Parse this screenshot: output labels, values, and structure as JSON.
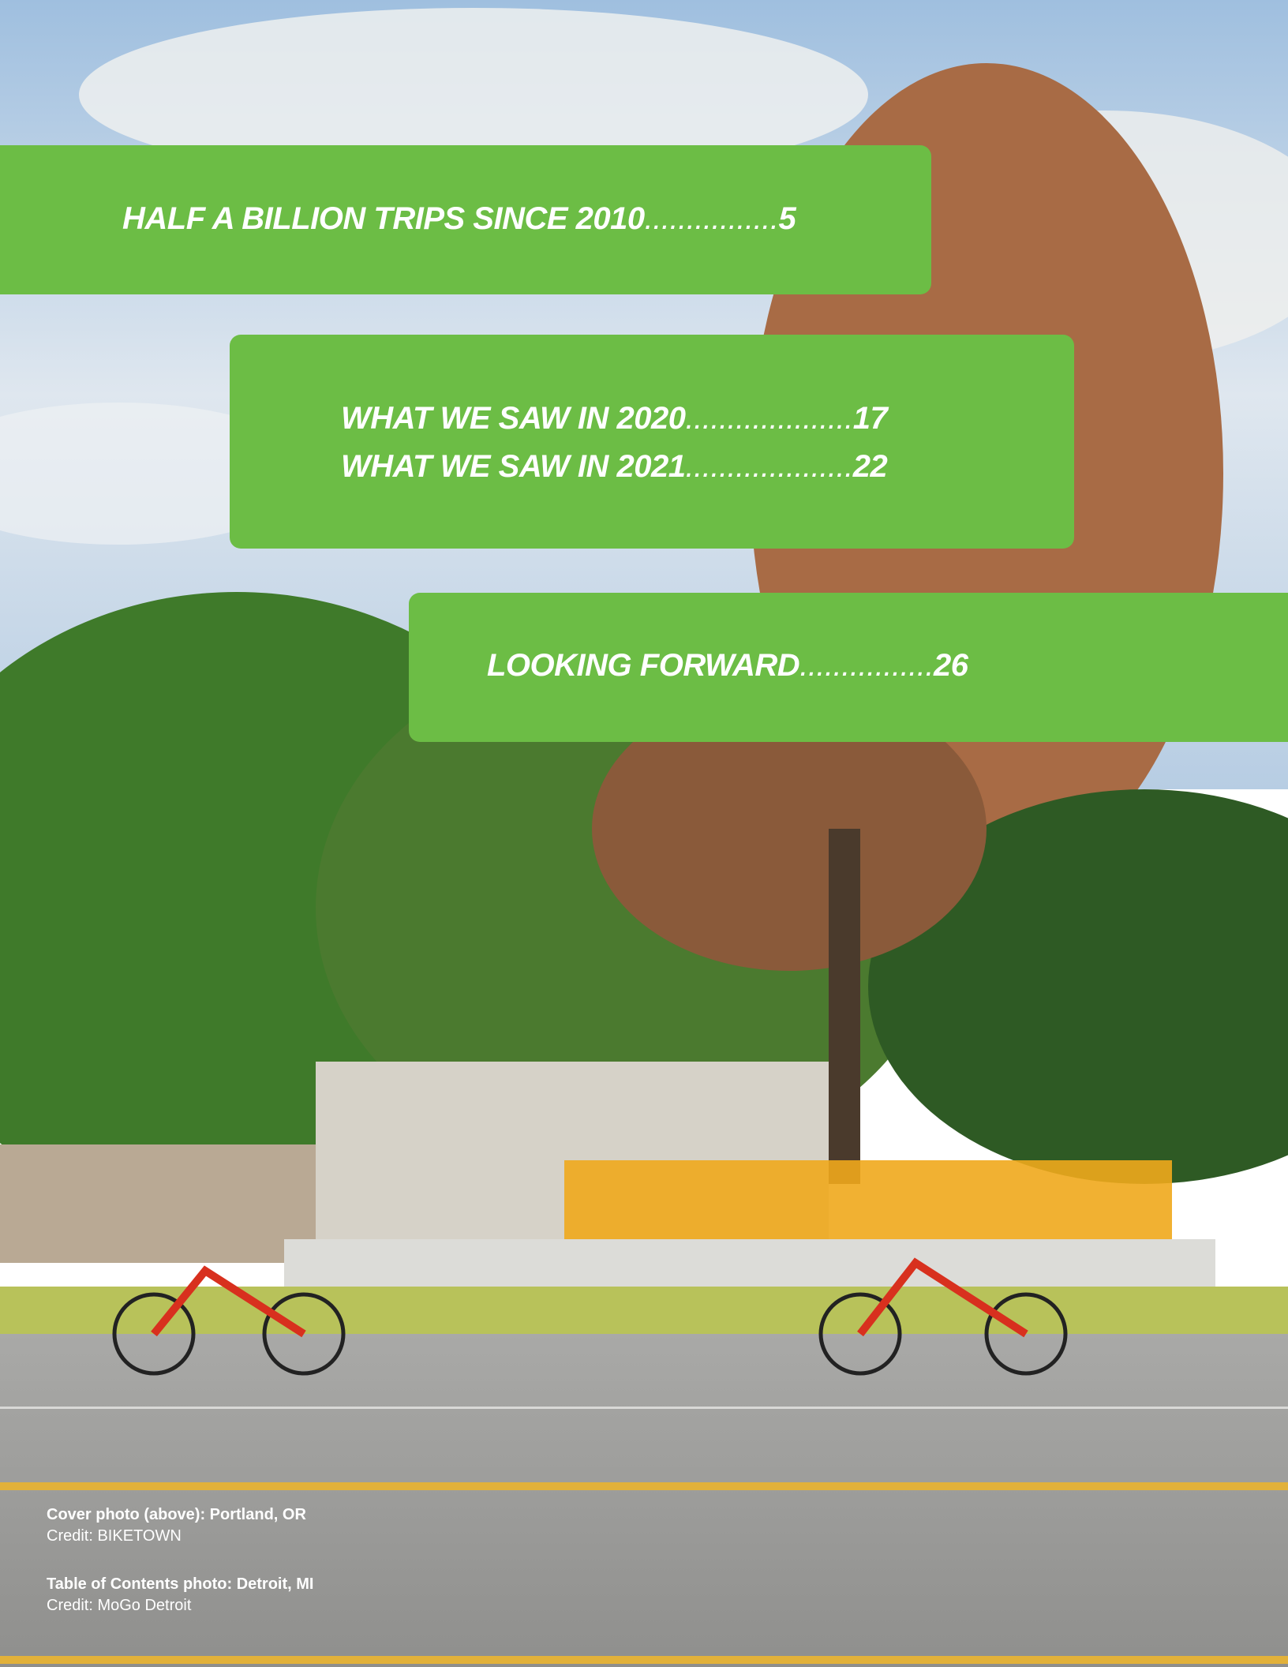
{
  "toc": [
    {
      "title": "HALF A BILLION TRIPS SINCE 2010",
      "leader": "................",
      "page": 5
    },
    {
      "title": "WHAT WE SAW IN 2020",
      "leader": "....................",
      "page": 17
    },
    {
      "title": "WHAT WE SAW IN 2021",
      "leader": "....................",
      "page": 22
    },
    {
      "title": "LOOKING FORWARD",
      "leader": "................",
      "page": 26
    }
  ],
  "credits": [
    {
      "caption": "Cover photo (above): Portland, OR",
      "credit": "Credit: BIKETOWN"
    },
    {
      "caption": "Table of Contents photo: Detroit, MI",
      "credit": "Credit: MoGo Detroit"
    }
  ]
}
